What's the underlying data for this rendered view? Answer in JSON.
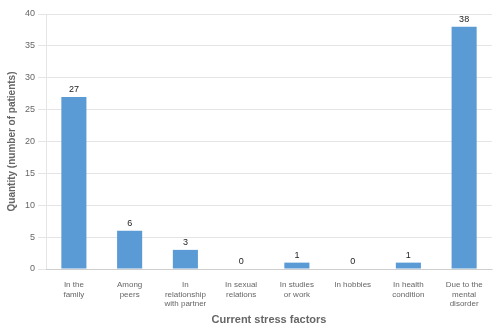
{
  "chart_data": {
    "type": "bar",
    "xlabel": "Current stress factors",
    "ylabel": "Quantity (number of patients)",
    "categories": [
      "In the\nfamily",
      "Among\npeers",
      "In\nrelationship\nwith partner",
      "In sexual\nrelations",
      "In studies\nor work",
      "In hobbies",
      "In health\ncondition",
      "Due to the\nmental\ndisorder"
    ],
    "values": [
      27,
      6,
      3,
      0,
      1,
      0,
      1,
      38
    ],
    "color": "#5B9BD5",
    "ylim": [
      0,
      40
    ],
    "yticks": [
      0,
      5,
      10,
      15,
      20,
      25,
      30,
      35,
      40
    ],
    "grid": true,
    "data_labels": true
  }
}
